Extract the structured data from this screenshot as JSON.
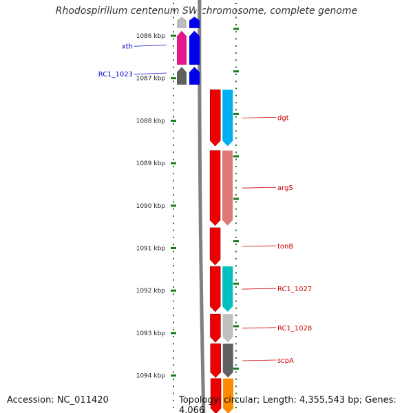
{
  "title": "Rhodospirillum centenum SW chromosome, complete genome",
  "accession": "Accession: NC_011420",
  "topology": "Topology: circular; Length: 4,355,543 bp; Genes: 4,066",
  "colors": {
    "background": "#ffffff",
    "tick": "#1a7a1a",
    "backbone": "#808080",
    "forward_label": "#0000cc",
    "reverse_label": "#cc0000"
  },
  "ruler": {
    "unit": "kbp",
    "ticks": [
      {
        "label": "1086 kbp",
        "kbp": 1086
      },
      {
        "label": "1087 kbp",
        "kbp": 1087
      },
      {
        "label": "1088 kbp",
        "kbp": 1088
      },
      {
        "label": "1089 kbp",
        "kbp": 1089
      },
      {
        "label": "1090 kbp",
        "kbp": 1090
      },
      {
        "label": "1091 kbp",
        "kbp": 1091
      },
      {
        "label": "1092 kbp",
        "kbp": 1092
      },
      {
        "label": "1093 kbp",
        "kbp": 1093
      },
      {
        "label": "1094 kbp",
        "kbp": 1094
      }
    ]
  },
  "genes": [
    {
      "label": "",
      "strand": "forward",
      "start_kbp": 1085.55,
      "end_kbp": 1085.82,
      "color": "#0000ee",
      "cds_color": "#bbbbbb",
      "partial": true
    },
    {
      "label": "xth",
      "strand": "forward",
      "start_kbp": 1085.88,
      "end_kbp": 1086.68,
      "color": "#0000ee",
      "cds_color": "#e0188c"
    },
    {
      "label": "RC1_1023",
      "strand": "forward",
      "start_kbp": 1086.73,
      "end_kbp": 1087.15,
      "color": "#0000ee",
      "cds_color": "#606060"
    },
    {
      "label": "dgt",
      "strand": "reverse",
      "start_kbp": 1087.27,
      "end_kbp": 1088.6,
      "color": "#ee0000",
      "cds_color": "#00b0f0"
    },
    {
      "label": "argS",
      "strand": "reverse",
      "start_kbp": 1088.7,
      "end_kbp": 1090.47,
      "color": "#ee0000",
      "cds_color": "#e07878"
    },
    {
      "label": "tonB",
      "strand": "reverse",
      "start_kbp": 1090.52,
      "end_kbp": 1091.4,
      "color": "#ee0000",
      "cds_color": ""
    },
    {
      "label": "RC1_1027",
      "strand": "reverse",
      "start_kbp": 1091.43,
      "end_kbp": 1092.5,
      "color": "#ee0000",
      "cds_color": "#00c0c0"
    },
    {
      "label": "RC1_1028",
      "strand": "reverse",
      "start_kbp": 1092.55,
      "end_kbp": 1093.22,
      "color": "#ee0000",
      "cds_color": "#c0c0c0"
    },
    {
      "label": "scpA",
      "strand": "reverse",
      "start_kbp": 1093.25,
      "end_kbp": 1094.05,
      "color": "#ee0000",
      "cds_color": "#606060"
    },
    {
      "label": "",
      "strand": "reverse",
      "start_kbp": 1094.07,
      "end_kbp": 1094.9,
      "color": "#ee0000",
      "cds_color": "#ff8c00",
      "partial": true
    }
  ]
}
